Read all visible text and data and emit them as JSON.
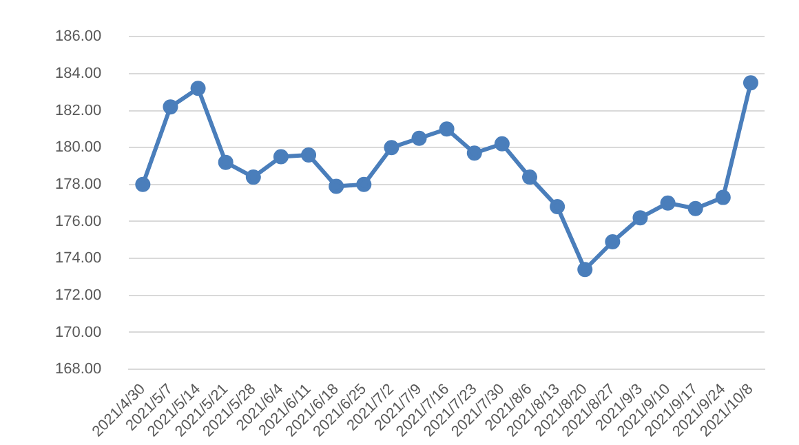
{
  "chart_data": {
    "type": "line",
    "categories": [
      "2021/4/30",
      "2021/5/7",
      "2021/5/14",
      "2021/5/21",
      "2021/5/28",
      "2021/6/4",
      "2021/6/11",
      "2021/6/18",
      "2021/6/25",
      "2021/7/2",
      "2021/7/9",
      "2021/7/16",
      "2021/7/23",
      "2021/7/30",
      "2021/8/6",
      "2021/8/13",
      "2021/8/20",
      "2021/8/27",
      "2021/9/3",
      "2021/9/10",
      "2021/9/17",
      "2021/9/24",
      "2021/10/8"
    ],
    "series": [
      {
        "color": "#4a7ebb",
        "values": [
          178.0,
          182.2,
          183.2,
          179.2,
          178.4,
          179.5,
          179.6,
          177.9,
          178.0,
          180.0,
          180.5,
          181.0,
          179.7,
          180.2,
          178.4,
          176.8,
          173.4,
          174.9,
          176.2,
          177.0,
          176.7,
          177.3,
          183.5
        ]
      }
    ],
    "ylim": [
      168,
      186
    ],
    "yticks": [
      {
        "value": 168,
        "label": "168.00"
      },
      {
        "value": 170,
        "label": "170.00"
      },
      {
        "value": 172,
        "label": "172.00"
      },
      {
        "value": 174,
        "label": "174.00"
      },
      {
        "value": 176,
        "label": "176.00"
      },
      {
        "value": 178,
        "label": "178.00"
      },
      {
        "value": 180,
        "label": "180.00"
      },
      {
        "value": 182,
        "label": "182.00"
      },
      {
        "value": 184,
        "label": "184.00"
      },
      {
        "value": 186,
        "label": "186.00"
      }
    ],
    "grid": "y",
    "legend": false,
    "marker": "circle",
    "line_style": "solid"
  }
}
